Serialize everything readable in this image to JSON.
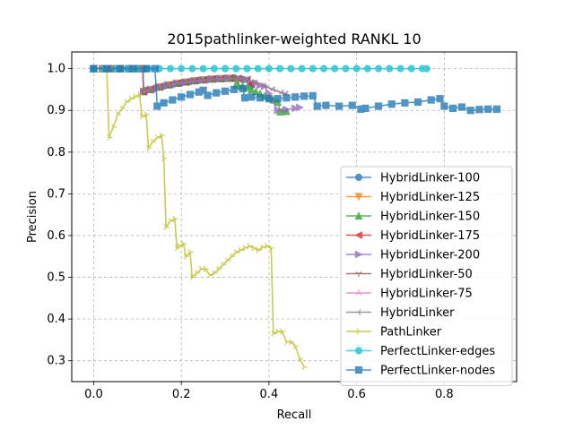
{
  "chart_data": {
    "type": "line",
    "title": "2015pathlinker-weighted RANKL 10",
    "xlabel": "Recall",
    "ylabel": "Precision",
    "xlim": [
      -0.05,
      0.965
    ],
    "ylim": [
      0.25,
      1.04
    ],
    "xticks": [
      0.0,
      0.2,
      0.4,
      0.6,
      0.8
    ],
    "yticks": [
      0.3,
      0.4,
      0.5,
      0.6,
      0.7,
      0.8,
      0.9,
      1.0
    ],
    "grid": true,
    "legend_position": "lower right",
    "series": [
      {
        "name": "HybridLinker-100",
        "color": "#1f77b4",
        "marker": "circle",
        "x": [
          0.0,
          0.02,
          0.04,
          0.06,
          0.08,
          0.1,
          0.112,
          0.114,
          0.12,
          0.14,
          0.16,
          0.18,
          0.2,
          0.22,
          0.24,
          0.26,
          0.28,
          0.3,
          0.32,
          0.34,
          0.36
        ],
        "y": [
          1.0,
          1.0,
          1.0,
          1.0,
          1.0,
          1.0,
          1.0,
          0.945,
          0.948,
          0.953,
          0.958,
          0.962,
          0.966,
          0.969,
          0.972,
          0.974,
          0.976,
          0.977,
          0.978,
          0.974,
          0.96
        ]
      },
      {
        "name": "HybridLinker-125",
        "color": "#ff7f0e",
        "marker": "triangle-down",
        "x": [
          0.0,
          0.02,
          0.04,
          0.06,
          0.08,
          0.1,
          0.112,
          0.114,
          0.13,
          0.15,
          0.17,
          0.19,
          0.21,
          0.23,
          0.25,
          0.27,
          0.29,
          0.31,
          0.33
        ],
        "y": [
          1.0,
          1.0,
          1.0,
          1.0,
          1.0,
          1.0,
          1.0,
          0.945,
          0.95,
          0.956,
          0.961,
          0.965,
          0.968,
          0.971,
          0.973,
          0.975,
          0.976,
          0.977,
          0.972
        ]
      },
      {
        "name": "HybridLinker-150",
        "color": "#2ca02c",
        "marker": "triangle-up",
        "x": [
          0.0,
          0.02,
          0.04,
          0.06,
          0.08,
          0.1,
          0.112,
          0.114,
          0.13,
          0.15,
          0.17,
          0.19,
          0.21,
          0.23,
          0.25,
          0.27,
          0.29,
          0.31,
          0.32,
          0.325,
          0.33,
          0.34,
          0.35,
          0.36,
          0.37,
          0.38,
          0.39,
          0.4,
          0.41,
          0.42,
          0.425,
          0.43,
          0.44
        ],
        "y": [
          1.0,
          1.0,
          1.0,
          1.0,
          1.0,
          1.0,
          1.0,
          0.945,
          0.95,
          0.956,
          0.961,
          0.965,
          0.968,
          0.971,
          0.973,
          0.975,
          0.976,
          0.977,
          0.977,
          0.962,
          0.96,
          0.958,
          0.955,
          0.95,
          0.945,
          0.94,
          0.934,
          0.93,
          0.925,
          0.92,
          0.897,
          0.897,
          0.898
        ]
      },
      {
        "name": "HybridLinker-175",
        "color": "#d62728",
        "marker": "triangle-left",
        "x": [
          0.0,
          0.02,
          0.04,
          0.06,
          0.08,
          0.1,
          0.112,
          0.114,
          0.13,
          0.15,
          0.17,
          0.19,
          0.21,
          0.23,
          0.25,
          0.27,
          0.29,
          0.31,
          0.33,
          0.35,
          0.36
        ],
        "y": [
          1.0,
          1.0,
          1.0,
          1.0,
          1.0,
          1.0,
          1.0,
          0.945,
          0.95,
          0.956,
          0.961,
          0.965,
          0.968,
          0.971,
          0.973,
          0.975,
          0.976,
          0.977,
          0.977,
          0.974,
          0.963
        ]
      },
      {
        "name": "HybridLinker-200",
        "color": "#9467bd",
        "marker": "triangle-right",
        "x": [
          0.0,
          0.02,
          0.04,
          0.06,
          0.08,
          0.1,
          0.112,
          0.114,
          0.13,
          0.15,
          0.17,
          0.19,
          0.21,
          0.23,
          0.25,
          0.27,
          0.29,
          0.31,
          0.33,
          0.35,
          0.37,
          0.38,
          0.39,
          0.4,
          0.42,
          0.44,
          0.46,
          0.47
        ],
        "y": [
          1.0,
          1.0,
          1.0,
          1.0,
          1.0,
          1.0,
          1.0,
          0.945,
          0.95,
          0.956,
          0.961,
          0.965,
          0.968,
          0.971,
          0.973,
          0.975,
          0.976,
          0.977,
          0.977,
          0.974,
          0.966,
          0.96,
          0.958,
          0.94,
          0.9,
          0.902,
          0.905,
          0.907
        ]
      },
      {
        "name": "HybridLinker-50",
        "color": "#8c564b",
        "marker": "tri-down",
        "x": [
          0.0,
          0.02,
          0.04,
          0.06,
          0.08,
          0.1,
          0.112,
          0.114,
          0.13,
          0.15,
          0.17,
          0.19,
          0.21,
          0.23,
          0.25,
          0.27,
          0.29,
          0.31,
          0.33,
          0.35
        ],
        "y": [
          1.0,
          1.0,
          1.0,
          1.0,
          1.0,
          1.0,
          1.0,
          0.945,
          0.95,
          0.956,
          0.961,
          0.965,
          0.968,
          0.971,
          0.973,
          0.975,
          0.976,
          0.977,
          0.977,
          0.973
        ]
      },
      {
        "name": "HybridLinker-75",
        "color": "#e377c2",
        "marker": "tri-up",
        "x": [
          0.0,
          0.02,
          0.04,
          0.06,
          0.08,
          0.1,
          0.112,
          0.114,
          0.13,
          0.15,
          0.17,
          0.19,
          0.21,
          0.23,
          0.25,
          0.27,
          0.29,
          0.31,
          0.33,
          0.35,
          0.37,
          0.39,
          0.41,
          0.43,
          0.44
        ],
        "y": [
          1.0,
          1.0,
          1.0,
          1.0,
          1.0,
          1.0,
          1.0,
          0.945,
          0.95,
          0.956,
          0.961,
          0.965,
          0.968,
          0.971,
          0.973,
          0.975,
          0.976,
          0.977,
          0.977,
          0.974,
          0.966,
          0.958,
          0.95,
          0.942,
          0.938
        ]
      },
      {
        "name": "HybridLinker",
        "color": "#7f7f7f",
        "marker": "tri-left",
        "x": [
          0.0,
          0.02,
          0.04,
          0.06,
          0.08,
          0.1,
          0.112,
          0.114,
          0.13,
          0.15,
          0.17,
          0.19,
          0.21,
          0.23,
          0.25,
          0.27,
          0.29,
          0.31,
          0.33,
          0.35,
          0.37,
          0.39,
          0.41,
          0.43,
          0.44
        ],
        "y": [
          1.0,
          1.0,
          1.0,
          1.0,
          1.0,
          1.0,
          1.0,
          0.945,
          0.95,
          0.956,
          0.961,
          0.965,
          0.968,
          0.971,
          0.973,
          0.975,
          0.976,
          0.977,
          0.977,
          0.974,
          0.966,
          0.958,
          0.95,
          0.942,
          0.94
        ]
      },
      {
        "name": "PathLinker",
        "color": "#bcbd22",
        "marker": "tri-right",
        "x": [
          0.0,
          0.02,
          0.03,
          0.035,
          0.045,
          0.055,
          0.065,
          0.075,
          0.085,
          0.095,
          0.105,
          0.11,
          0.12,
          0.125,
          0.135,
          0.145,
          0.155,
          0.16,
          0.165,
          0.175,
          0.185,
          0.19,
          0.195,
          0.205,
          0.21,
          0.22,
          0.225,
          0.235,
          0.245,
          0.255,
          0.265,
          0.275,
          0.285,
          0.295,
          0.305,
          0.315,
          0.325,
          0.335,
          0.345,
          0.355,
          0.365,
          0.375,
          0.385,
          0.395,
          0.405,
          0.41,
          0.42,
          0.43,
          0.44,
          0.45,
          0.46,
          0.47,
          0.48
        ],
        "y": [
          1.0,
          1.0,
          1.0,
          0.835,
          0.86,
          0.89,
          0.905,
          0.92,
          0.928,
          0.933,
          0.938,
          0.885,
          0.89,
          0.81,
          0.825,
          0.835,
          0.84,
          0.785,
          0.62,
          0.635,
          0.64,
          0.57,
          0.575,
          0.58,
          0.55,
          0.56,
          0.5,
          0.51,
          0.52,
          0.52,
          0.505,
          0.51,
          0.52,
          0.53,
          0.54,
          0.55,
          0.56,
          0.565,
          0.57,
          0.575,
          0.57,
          0.565,
          0.572,
          0.575,
          0.57,
          0.365,
          0.37,
          0.37,
          0.345,
          0.345,
          0.335,
          0.305,
          0.285
        ]
      },
      {
        "name": "PerfectLinker-edges",
        "color": "#17becf",
        "marker": "circle",
        "x": [
          0.0,
          0.025,
          0.05,
          0.075,
          0.1,
          0.125,
          0.15,
          0.175,
          0.2,
          0.225,
          0.25,
          0.275,
          0.3,
          0.325,
          0.35,
          0.375,
          0.4,
          0.425,
          0.45,
          0.475,
          0.5,
          0.525,
          0.55,
          0.575,
          0.6,
          0.625,
          0.65,
          0.675,
          0.7,
          0.725,
          0.75,
          0.76
        ],
        "y": [
          1.0,
          1.0,
          1.0,
          1.0,
          1.0,
          1.0,
          1.0,
          1.0,
          1.0,
          1.0,
          1.0,
          1.0,
          1.0,
          1.0,
          1.0,
          1.0,
          1.0,
          1.0,
          1.0,
          1.0,
          1.0,
          1.0,
          1.0,
          1.0,
          1.0,
          1.0,
          1.0,
          1.0,
          1.0,
          1.0,
          1.0,
          1.0
        ]
      },
      {
        "name": "PerfectLinker-nodes",
        "color": "#1f77b4",
        "marker": "square",
        "x": [
          0.0,
          0.03,
          0.06,
          0.09,
          0.12,
          0.14,
          0.145,
          0.16,
          0.18,
          0.2,
          0.22,
          0.24,
          0.25,
          0.26,
          0.28,
          0.3,
          0.32,
          0.34,
          0.345,
          0.36,
          0.38,
          0.4,
          0.42,
          0.44,
          0.46,
          0.48,
          0.5,
          0.51,
          0.53,
          0.56,
          0.59,
          0.61,
          0.62,
          0.65,
          0.68,
          0.71,
          0.74,
          0.77,
          0.79,
          0.8,
          0.82,
          0.84,
          0.86,
          0.88,
          0.9,
          0.92
        ],
        "y": [
          1.0,
          1.0,
          1.0,
          1.0,
          1.0,
          1.0,
          0.91,
          0.918,
          0.925,
          0.932,
          0.938,
          0.944,
          0.948,
          0.936,
          0.942,
          0.946,
          0.95,
          0.952,
          0.93,
          0.932,
          0.93,
          0.928,
          0.928,
          0.93,
          0.932,
          0.934,
          0.935,
          0.91,
          0.912,
          0.91,
          0.912,
          0.903,
          0.905,
          0.91,
          0.915,
          0.918,
          0.92,
          0.925,
          0.928,
          0.91,
          0.905,
          0.908,
          0.9,
          0.902,
          0.903,
          0.903
        ]
      }
    ]
  }
}
